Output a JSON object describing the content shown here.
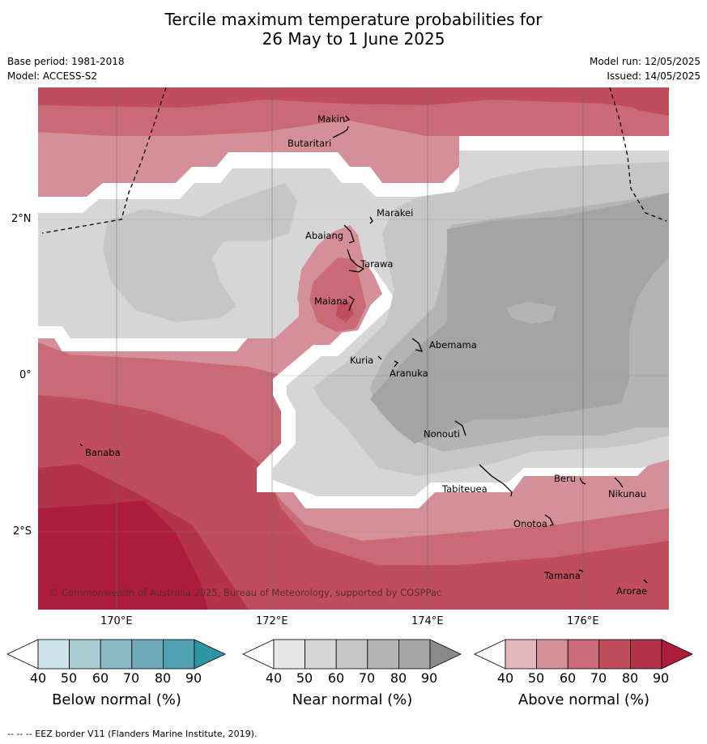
{
  "title_line1": "Tercile maximum temperature probabilities for",
  "title_line2": "26 May to 1 June 2025",
  "meta": {
    "base_period": "Base period: 1981-2018",
    "model": "Model: ACCESS-S2",
    "model_run": "Model run: 12/05/2025",
    "issued": "Issued: 14/05/2025"
  },
  "axes": {
    "lon_ticks": [
      "170°E",
      "172°E",
      "174°E",
      "176°E"
    ],
    "lat_ticks": [
      "2°N",
      "0°",
      "2°S"
    ]
  },
  "places": [
    "Makin",
    "Butaritari",
    "Marakei",
    "Abaiang",
    "Tarawa",
    "Maiana",
    "Abemama",
    "Kuria",
    "Aranuka",
    "Nonouti",
    "Banaba",
    "Beru",
    "Nikunau",
    "Tabiteuea",
    "Onotoa",
    "Tamana",
    "Arorae"
  ],
  "copyright": "© Commonwealth of Australia 2025, Bureau of Meteorology, supported by COSPPac",
  "colorbars": [
    {
      "label": "Below normal (%)",
      "ticks": [
        "40",
        "50",
        "60",
        "70",
        "80",
        "90"
      ],
      "colors": [
        "#ffffff",
        "#cde3ea",
        "#a9ccd5",
        "#8cbac6",
        "#6eabba",
        "#4ea1b1",
        "#2e95a7"
      ]
    },
    {
      "label": "Near normal (%)",
      "ticks": [
        "40",
        "50",
        "60",
        "70",
        "80",
        "90"
      ],
      "colors": [
        "#ffffff",
        "#e6e6e6",
        "#d6d6d6",
        "#c6c6c6",
        "#b4b4b4",
        "#a4a4a4",
        "#8a8a8a"
      ]
    },
    {
      "label": "Above normal (%)",
      "ticks": [
        "40",
        "50",
        "60",
        "70",
        "80",
        "90"
      ],
      "colors": [
        "#ffffff",
        "#e2b7be",
        "#d48f98",
        "#c96a76",
        "#bf4d5c",
        "#b33448",
        "#ad1d3b"
      ]
    }
  ],
  "footnote": "-- -- -- EEZ border V11 (Flanders Marine Institute, 2019)."
}
